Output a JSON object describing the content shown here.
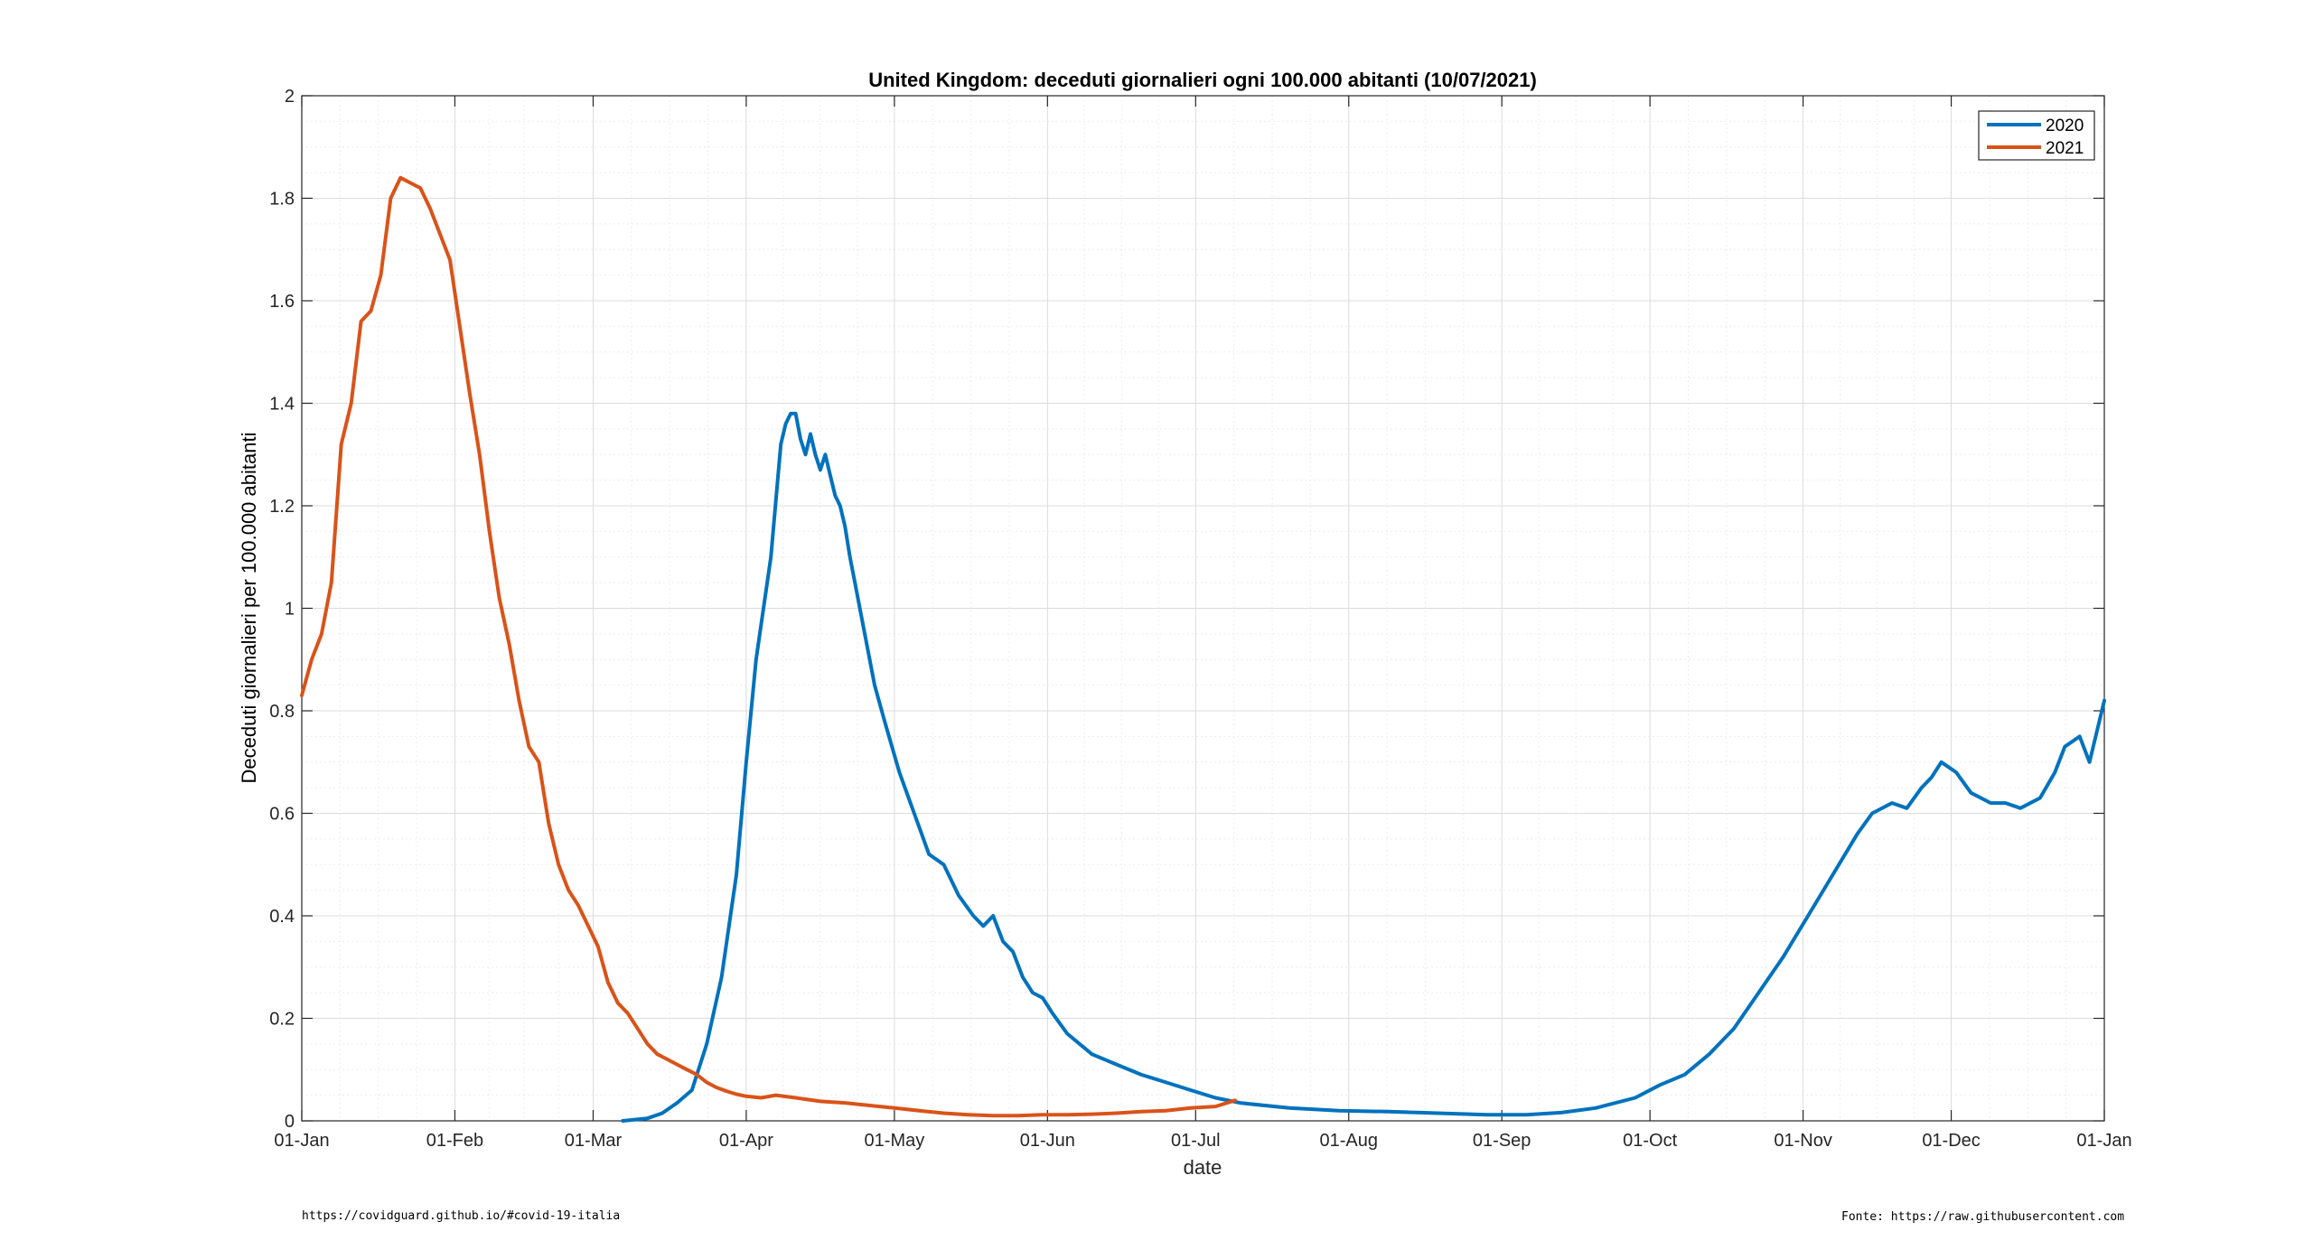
{
  "chart_data": {
    "type": "line",
    "title": "United Kingdom: deceduti giornalieri ogni 100.000 abitanti (10/07/2021)",
    "xlabel": "date",
    "ylabel": "Deceduti giornalieri per 100.000 abitanti",
    "xlim": [
      0,
      365
    ],
    "ylim": [
      0,
      2
    ],
    "yticks": [
      0,
      0.2,
      0.4,
      0.6,
      0.8,
      1,
      1.2,
      1.4,
      1.6,
      1.8,
      2
    ],
    "ytick_labels": [
      "0",
      "0.2",
      "0.4",
      "0.6",
      "0.8",
      "1",
      "1.2",
      "1.4",
      "1.6",
      "1.8",
      "2"
    ],
    "xticks": [
      0,
      31,
      59,
      90,
      120,
      151,
      181,
      212,
      243,
      273,
      304,
      334,
      365
    ],
    "xtick_labels": [
      "01-Jan",
      "01-Feb",
      "01-Mar",
      "01-Apr",
      "01-May",
      "01-Jun",
      "01-Jul",
      "01-Aug",
      "01-Sep",
      "01-Oct",
      "01-Nov",
      "01-Dec",
      "01-Jan"
    ],
    "grid": true,
    "legend_position": "top-right",
    "series": [
      {
        "name": "2020",
        "color": "#0072BD",
        "x": [
          65,
          70,
          73,
          76,
          79,
          82,
          85,
          88,
          90,
          92,
          95,
          97,
          98,
          99,
          100,
          101,
          102,
          103,
          104,
          105,
          106,
          107,
          108,
          109,
          110,
          111,
          112,
          114,
          116,
          118,
          121,
          124,
          127,
          130,
          133,
          136,
          138,
          140,
          142,
          144,
          146,
          148,
          150,
          152,
          155,
          160,
          165,
          170,
          175,
          180,
          185,
          190,
          195,
          200,
          210,
          220,
          230,
          240,
          248,
          255,
          262,
          270,
          275,
          280,
          285,
          290,
          295,
          300,
          305,
          310,
          315,
          318,
          322,
          325,
          328,
          330,
          332,
          335,
          338,
          342,
          345,
          348,
          352,
          355,
          357,
          360,
          362,
          365
        ],
        "y": [
          0.0,
          0.005,
          0.015,
          0.035,
          0.06,
          0.15,
          0.28,
          0.48,
          0.7,
          0.9,
          1.1,
          1.32,
          1.36,
          1.38,
          1.38,
          1.33,
          1.3,
          1.34,
          1.3,
          1.27,
          1.3,
          1.26,
          1.22,
          1.2,
          1.16,
          1.1,
          1.05,
          0.95,
          0.85,
          0.78,
          0.68,
          0.6,
          0.52,
          0.5,
          0.44,
          0.4,
          0.38,
          0.4,
          0.35,
          0.33,
          0.28,
          0.25,
          0.24,
          0.21,
          0.17,
          0.13,
          0.11,
          0.09,
          0.075,
          0.06,
          0.045,
          0.035,
          0.03,
          0.025,
          0.02,
          0.018,
          0.015,
          0.012,
          0.012,
          0.016,
          0.025,
          0.045,
          0.07,
          0.09,
          0.13,
          0.18,
          0.25,
          0.32,
          0.4,
          0.48,
          0.56,
          0.6,
          0.62,
          0.61,
          0.65,
          0.67,
          0.7,
          0.68,
          0.64,
          0.62,
          0.62,
          0.61,
          0.63,
          0.68,
          0.73,
          0.75,
          0.7,
          0.82
        ]
      },
      {
        "name": "2021",
        "color": "#D95319",
        "x": [
          0,
          2,
          4,
          6,
          8,
          10,
          12,
          14,
          16,
          18,
          20,
          22,
          24,
          26,
          28,
          30,
          32,
          34,
          36,
          38,
          40,
          42,
          44,
          46,
          48,
          50,
          52,
          54,
          56,
          58,
          60,
          62,
          64,
          66,
          68,
          70,
          72,
          74,
          76,
          78,
          80,
          82,
          84,
          86,
          88,
          90,
          93,
          96,
          100,
          105,
          110,
          115,
          120,
          125,
          130,
          135,
          140,
          145,
          150,
          155,
          160,
          165,
          170,
          175,
          180,
          185,
          189
        ],
        "y": [
          0.83,
          0.9,
          0.95,
          1.05,
          1.32,
          1.4,
          1.56,
          1.58,
          1.65,
          1.8,
          1.84,
          1.83,
          1.82,
          1.78,
          1.73,
          1.68,
          1.55,
          1.42,
          1.3,
          1.15,
          1.02,
          0.93,
          0.82,
          0.73,
          0.7,
          0.58,
          0.5,
          0.45,
          0.42,
          0.38,
          0.34,
          0.27,
          0.23,
          0.21,
          0.18,
          0.15,
          0.13,
          0.12,
          0.11,
          0.1,
          0.09,
          0.075,
          0.065,
          0.058,
          0.052,
          0.048,
          0.045,
          0.05,
          0.045,
          0.038,
          0.035,
          0.03,
          0.025,
          0.02,
          0.015,
          0.012,
          0.01,
          0.01,
          0.012,
          0.012,
          0.013,
          0.015,
          0.018,
          0.02,
          0.025,
          0.028,
          0.04
        ]
      }
    ]
  },
  "footer": {
    "left_note": "https://covidguard.github.io/#covid-19-italia",
    "right_note": "Fonte: https://raw.githubusercontent.com"
  }
}
